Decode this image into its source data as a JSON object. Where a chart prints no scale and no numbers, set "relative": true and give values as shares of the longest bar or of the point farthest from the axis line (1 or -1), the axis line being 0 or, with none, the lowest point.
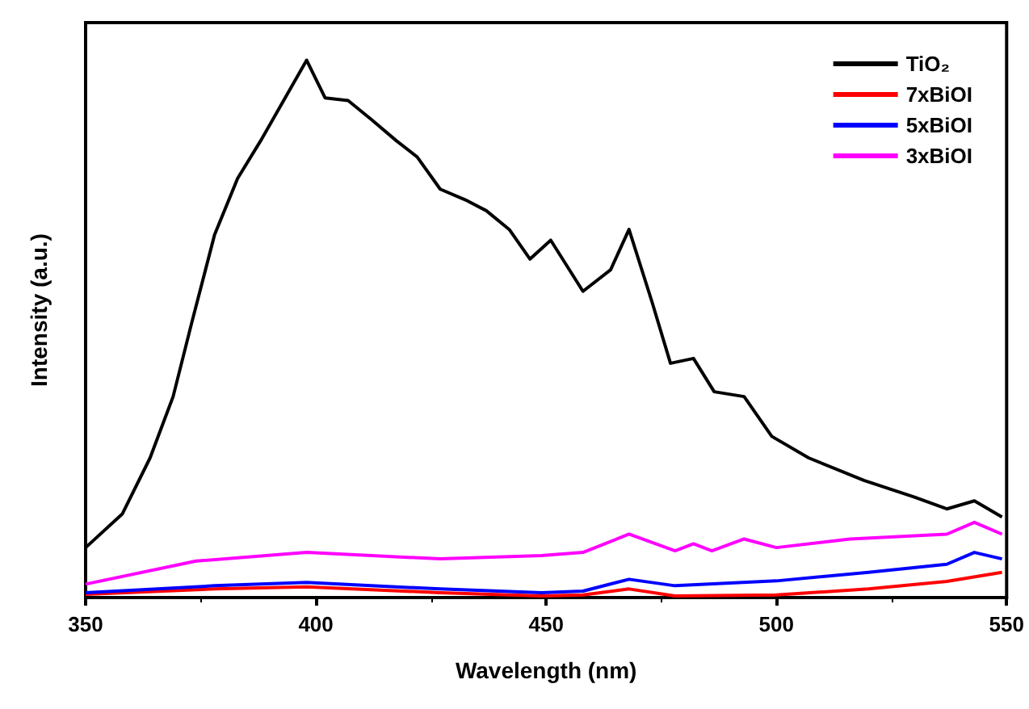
{
  "chart_data": {
    "type": "line",
    "xlabel": "Wavelength (nm)",
    "ylabel": "Intensity (a.u.)",
    "relative": true,
    "xlim": [
      350,
      550
    ],
    "xticks": [
      350,
      400,
      450,
      500,
      550
    ],
    "legend": "top right",
    "marker": "none",
    "grid": false,
    "series": [
      {
        "name": "TiO₂",
        "color": "#000000",
        "x": [
          350,
          358,
          364,
          369,
          373,
          378,
          383,
          388,
          393,
          398,
          402,
          407,
          412,
          417.5,
          422,
          427,
          432.5,
          437,
          442,
          446.5,
          451,
          458,
          464,
          468,
          473,
          477,
          482,
          486.5,
          493,
          499,
          507,
          519,
          530,
          537,
          543,
          549
        ],
        "values": [
          0.093,
          0.156,
          0.26,
          0.374,
          0.51,
          0.675,
          0.78,
          0.85,
          0.925,
          1.0,
          0.93,
          0.925,
          0.89,
          0.85,
          0.82,
          0.76,
          0.74,
          0.72,
          0.685,
          0.63,
          0.665,
          0.57,
          0.61,
          0.685,
          0.55,
          0.436,
          0.445,
          0.383,
          0.374,
          0.3,
          0.26,
          0.218,
          0.187,
          0.165,
          0.18,
          0.15
        ]
      },
      {
        "name": "7xBiOI",
        "color": "#ff0000",
        "x": [
          350,
          378,
          398,
          427,
          449,
          458,
          468,
          478,
          500,
          520,
          537,
          549
        ],
        "values": [
          0.006,
          0.016,
          0.02,
          0.009,
          0.003,
          0.005,
          0.016,
          0.003,
          0.005,
          0.016,
          0.03,
          0.047
        ]
      },
      {
        "name": "5xBiOI",
        "color": "#0000ff",
        "x": [
          350,
          378,
          398,
          427,
          449,
          458,
          468,
          478,
          500,
          520,
          537,
          543,
          549
        ],
        "values": [
          0.009,
          0.022,
          0.028,
          0.016,
          0.009,
          0.012,
          0.034,
          0.022,
          0.031,
          0.047,
          0.062,
          0.084,
          0.072
        ]
      },
      {
        "name": "3xBiOI",
        "color": "#ff00ff",
        "x": [
          350,
          374,
          398,
          427,
          449,
          458,
          468,
          478,
          482,
          486,
          493,
          500,
          516,
          537,
          543,
          549
        ],
        "values": [
          0.025,
          0.068,
          0.084,
          0.072,
          0.078,
          0.084,
          0.118,
          0.087,
          0.1,
          0.087,
          0.109,
          0.093,
          0.109,
          0.118,
          0.14,
          0.118
        ]
      }
    ]
  }
}
